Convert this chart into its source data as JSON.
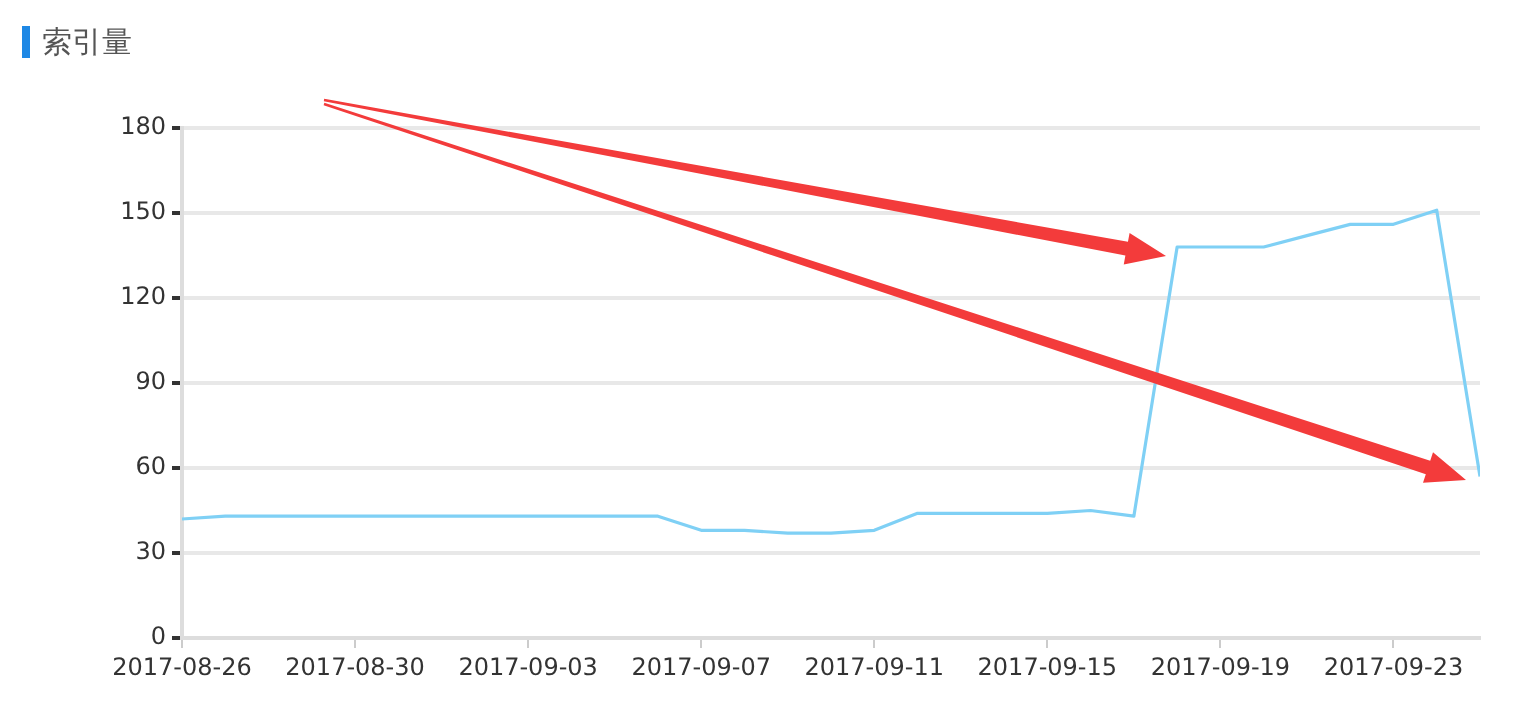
{
  "chart_data": {
    "type": "line",
    "title": "索引量",
    "x": [
      "2017-08-26",
      "2017-08-27",
      "2017-08-28",
      "2017-08-29",
      "2017-08-30",
      "2017-08-31",
      "2017-09-01",
      "2017-09-02",
      "2017-09-03",
      "2017-09-04",
      "2017-09-05",
      "2017-09-06",
      "2017-09-07",
      "2017-09-08",
      "2017-09-09",
      "2017-09-10",
      "2017-09-11",
      "2017-09-12",
      "2017-09-13",
      "2017-09-14",
      "2017-09-15",
      "2017-09-16",
      "2017-09-17",
      "2017-09-18",
      "2017-09-19",
      "2017-09-20",
      "2017-09-21",
      "2017-09-22",
      "2017-09-23",
      "2017-09-24",
      "2017-09-25"
    ],
    "series": [
      {
        "color": "#7fd0f5",
        "values": [
          42,
          43,
          43,
          43,
          43,
          43,
          43,
          43,
          43,
          43,
          43,
          43,
          38,
          38,
          37,
          37,
          38,
          44,
          44,
          44,
          44,
          45,
          43,
          138,
          138,
          138,
          142,
          146,
          146,
          151,
          57
        ]
      }
    ],
    "xlim": [
      "2017-08-26",
      "2017-09-25"
    ],
    "xticks": [
      "2017-08-26",
      "2017-08-30",
      "2017-09-03",
      "2017-09-07",
      "2017-09-11",
      "2017-09-15",
      "2017-09-19",
      "2017-09-23"
    ],
    "ylim": [
      0,
      180
    ],
    "yticks": [
      0,
      30,
      60,
      90,
      120,
      150,
      180
    ],
    "grid": "y",
    "marker": "none",
    "line_style": "solid"
  }
}
